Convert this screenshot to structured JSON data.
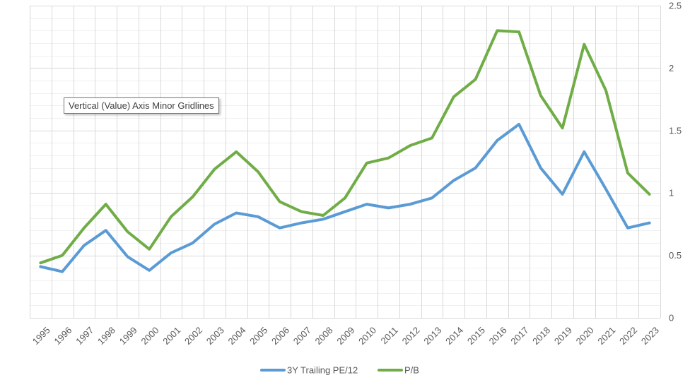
{
  "tooltip": {
    "text": "Vertical (Value) Axis Minor Gridlines"
  },
  "chart_data": {
    "type": "line",
    "categories": [
      "1995",
      "1996",
      "1997",
      "1998",
      "1999",
      "2000",
      "2001",
      "2002",
      "2003",
      "2004",
      "2005",
      "2006",
      "2007",
      "2008",
      "2009",
      "2010",
      "2011",
      "2012",
      "2013",
      "2014",
      "2015",
      "2016",
      "2017",
      "2018",
      "2019",
      "2020",
      "2021",
      "2022",
      "2023"
    ],
    "series": [
      {
        "name": "3Y Trailing PE/12",
        "color": "#5b9bd5",
        "values": [
          0.41,
          0.37,
          0.58,
          0.7,
          0.49,
          0.38,
          0.52,
          0.6,
          0.75,
          0.84,
          0.81,
          0.72,
          0.76,
          0.79,
          0.85,
          0.91,
          0.88,
          0.91,
          0.96,
          1.1,
          1.2,
          1.42,
          1.55,
          1.2,
          0.99,
          1.33,
          1.03,
          0.72,
          0.76
        ]
      },
      {
        "name": "P/B",
        "color": "#70ad47",
        "values": [
          0.44,
          0.5,
          0.72,
          0.91,
          0.69,
          0.55,
          0.81,
          0.97,
          1.19,
          1.33,
          1.17,
          0.93,
          0.85,
          0.82,
          0.96,
          1.24,
          1.28,
          1.38,
          1.44,
          1.77,
          1.91,
          2.3,
          2.29,
          1.78,
          1.52,
          2.19,
          1.82,
          1.16,
          0.99
        ]
      }
    ],
    "y_ticks": [
      "0",
      "0.5",
      "1",
      "1.5",
      "2",
      "2.5"
    ],
    "ylim": [
      0,
      2.5
    ],
    "y_axis_position": "right",
    "grid": {
      "major_vertical": true,
      "major_horizontal": true,
      "minor_horizontal": true
    },
    "legend_position": "bottom"
  }
}
